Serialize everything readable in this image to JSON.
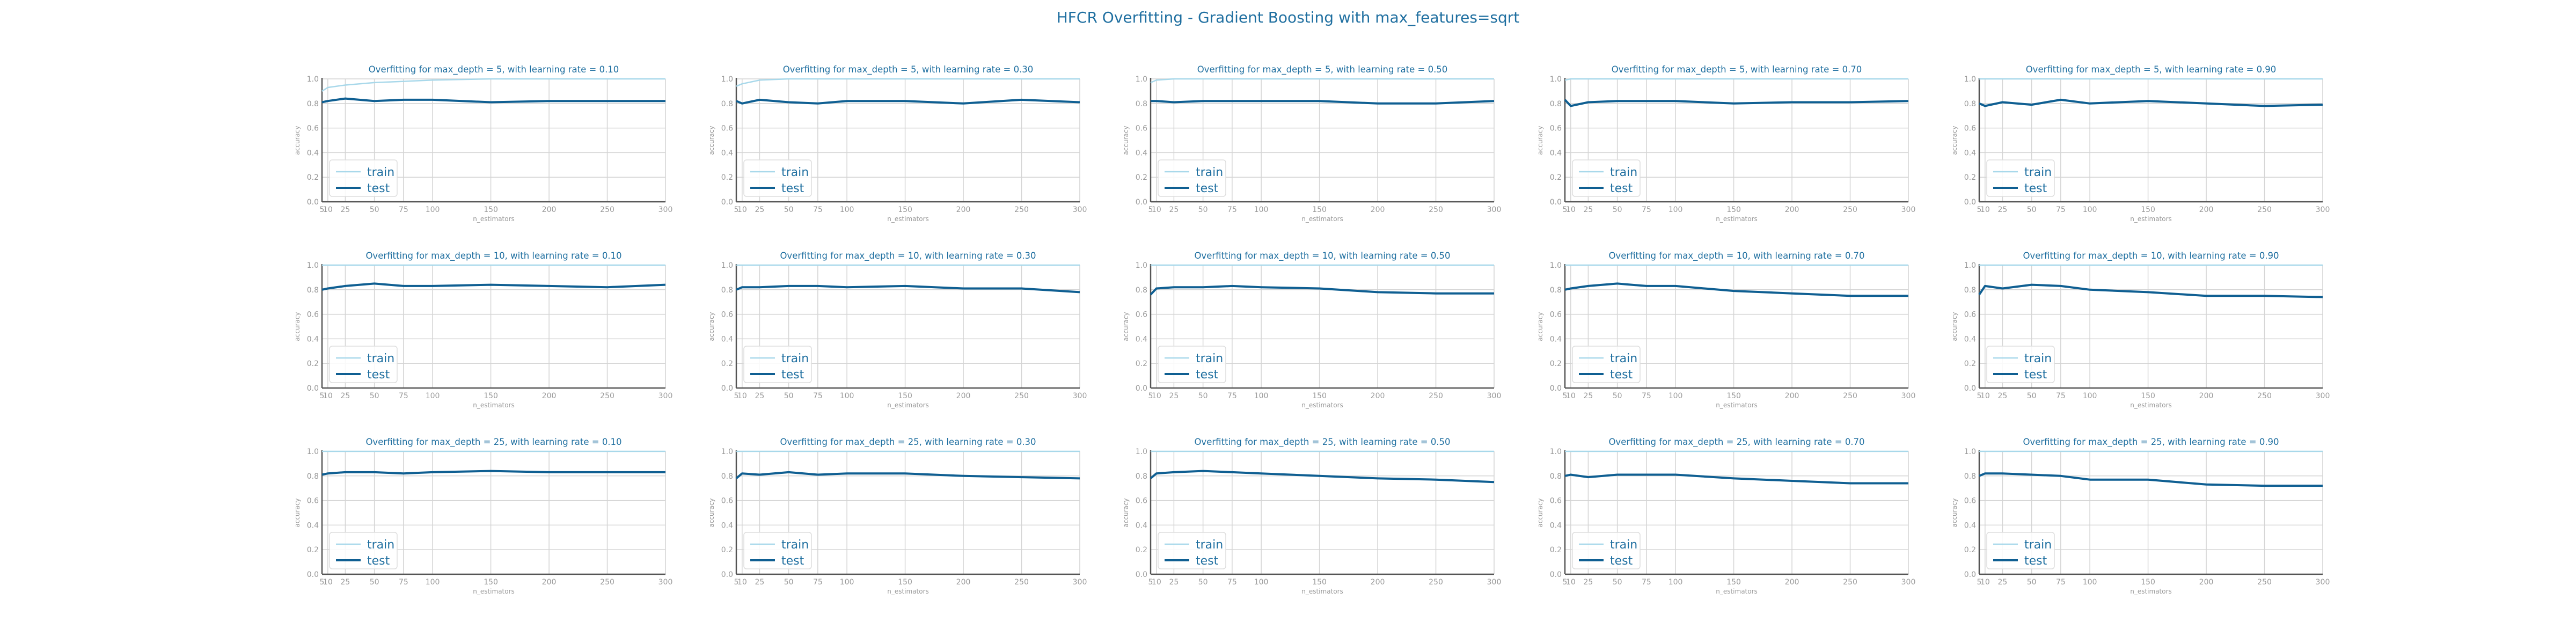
{
  "figure": {
    "title": "HFCR Overfitting - Gradient Boosting with max_features=sqrt"
  },
  "colors": {
    "title": "#1f6fa0",
    "train": "#a8d8ea",
    "test": "#0f5f92",
    "grid": "#d4d4d4",
    "axis": "#555555",
    "tick": "#999999"
  },
  "chart_data": [
    {
      "type": "line",
      "title": "Overfitting for max_depth = 5, with learning rate = 0.10",
      "xlabel": "n_estimators",
      "ylabel": "accuracy",
      "xlim": [
        5,
        300
      ],
      "ylim": [
        0,
        1
      ],
      "x": [
        5,
        10,
        25,
        50,
        75,
        100,
        150,
        200,
        250,
        300
      ],
      "legend": "lower-left",
      "grid": true,
      "series": [
        {
          "name": "train",
          "values": [
            0.9,
            0.93,
            0.95,
            0.97,
            0.98,
            0.99,
            1.0,
            1.0,
            1.0,
            1.0
          ]
        },
        {
          "name": "test",
          "values": [
            0.81,
            0.82,
            0.84,
            0.82,
            0.83,
            0.83,
            0.81,
            0.82,
            0.82,
            0.82
          ]
        }
      ]
    },
    {
      "type": "line",
      "title": "Overfitting for max_depth = 5, with learning rate = 0.30",
      "xlabel": "n_estimators",
      "ylabel": "accuracy",
      "xlim": [
        5,
        300
      ],
      "ylim": [
        0,
        1
      ],
      "x": [
        5,
        10,
        25,
        50,
        75,
        100,
        150,
        200,
        250,
        300
      ],
      "legend": "lower-left",
      "grid": true,
      "series": [
        {
          "name": "train",
          "values": [
            0.94,
            0.96,
            0.99,
            1.0,
            1.0,
            1.0,
            1.0,
            1.0,
            1.0,
            1.0
          ]
        },
        {
          "name": "test",
          "values": [
            0.82,
            0.8,
            0.83,
            0.81,
            0.8,
            0.82,
            0.82,
            0.8,
            0.83,
            0.81
          ]
        }
      ]
    },
    {
      "type": "line",
      "title": "Overfitting for max_depth = 5, with learning rate = 0.50",
      "xlabel": "n_estimators",
      "ylabel": "accuracy",
      "xlim": [
        5,
        300
      ],
      "ylim": [
        0,
        1
      ],
      "x": [
        5,
        10,
        25,
        50,
        75,
        100,
        150,
        200,
        250,
        300
      ],
      "legend": "lower-left",
      "grid": true,
      "series": [
        {
          "name": "train",
          "values": [
            0.97,
            0.99,
            1.0,
            1.0,
            1.0,
            1.0,
            1.0,
            1.0,
            1.0,
            1.0
          ]
        },
        {
          "name": "test",
          "values": [
            0.82,
            0.82,
            0.81,
            0.82,
            0.82,
            0.82,
            0.82,
            0.8,
            0.8,
            0.82
          ]
        }
      ]
    },
    {
      "type": "line",
      "title": "Overfitting for max_depth = 5, with learning rate = 0.70",
      "xlabel": "n_estimators",
      "ylabel": "accuracy",
      "xlim": [
        5,
        300
      ],
      "ylim": [
        0,
        1
      ],
      "x": [
        5,
        10,
        25,
        50,
        75,
        100,
        150,
        200,
        250,
        300
      ],
      "legend": "lower-left",
      "grid": true,
      "series": [
        {
          "name": "train",
          "values": [
            0.99,
            1.0,
            1.0,
            1.0,
            1.0,
            1.0,
            1.0,
            1.0,
            1.0,
            1.0
          ]
        },
        {
          "name": "test",
          "values": [
            0.83,
            0.78,
            0.81,
            0.82,
            0.82,
            0.82,
            0.8,
            0.81,
            0.81,
            0.82
          ]
        }
      ]
    },
    {
      "type": "line",
      "title": "Overfitting for max_depth = 5, with learning rate = 0.90",
      "xlabel": "n_estimators",
      "ylabel": "accuracy",
      "xlim": [
        5,
        300
      ],
      "ylim": [
        0,
        1
      ],
      "x": [
        5,
        10,
        25,
        50,
        75,
        100,
        150,
        200,
        250,
        300
      ],
      "legend": "lower-left",
      "grid": true,
      "series": [
        {
          "name": "train",
          "values": [
            1.0,
            1.0,
            1.0,
            1.0,
            1.0,
            1.0,
            1.0,
            1.0,
            1.0,
            1.0
          ]
        },
        {
          "name": "test",
          "values": [
            0.8,
            0.78,
            0.81,
            0.79,
            0.83,
            0.8,
            0.82,
            0.8,
            0.78,
            0.79
          ]
        }
      ]
    },
    {
      "type": "line",
      "title": "Overfitting for max_depth = 10, with learning rate = 0.10",
      "xlabel": "n_estimators",
      "ylabel": "accuracy",
      "xlim": [
        5,
        300
      ],
      "ylim": [
        0,
        1
      ],
      "x": [
        5,
        10,
        25,
        50,
        75,
        100,
        150,
        200,
        250,
        300
      ],
      "legend": "lower-left",
      "grid": true,
      "series": [
        {
          "name": "train",
          "values": [
            1.0,
            1.0,
            1.0,
            1.0,
            1.0,
            1.0,
            1.0,
            1.0,
            1.0,
            1.0
          ]
        },
        {
          "name": "test",
          "values": [
            0.8,
            0.81,
            0.83,
            0.85,
            0.83,
            0.83,
            0.84,
            0.83,
            0.82,
            0.84
          ]
        }
      ]
    },
    {
      "type": "line",
      "title": "Overfitting for max_depth = 10, with learning rate = 0.30",
      "xlabel": "n_estimators",
      "ylabel": "accuracy",
      "xlim": [
        5,
        300
      ],
      "ylim": [
        0,
        1
      ],
      "x": [
        5,
        10,
        25,
        50,
        75,
        100,
        150,
        200,
        250,
        300
      ],
      "legend": "lower-left",
      "grid": true,
      "series": [
        {
          "name": "train",
          "values": [
            1.0,
            1.0,
            1.0,
            1.0,
            1.0,
            1.0,
            1.0,
            1.0,
            1.0,
            1.0
          ]
        },
        {
          "name": "test",
          "values": [
            0.8,
            0.82,
            0.82,
            0.83,
            0.83,
            0.82,
            0.83,
            0.81,
            0.81,
            0.78
          ]
        }
      ]
    },
    {
      "type": "line",
      "title": "Overfitting for max_depth = 10, with learning rate = 0.50",
      "xlabel": "n_estimators",
      "ylabel": "accuracy",
      "xlim": [
        5,
        300
      ],
      "ylim": [
        0,
        1
      ],
      "x": [
        5,
        10,
        25,
        50,
        75,
        100,
        150,
        200,
        250,
        300
      ],
      "legend": "lower-left",
      "grid": true,
      "series": [
        {
          "name": "train",
          "values": [
            1.0,
            1.0,
            1.0,
            1.0,
            1.0,
            1.0,
            1.0,
            1.0,
            1.0,
            1.0
          ]
        },
        {
          "name": "test",
          "values": [
            0.76,
            0.81,
            0.82,
            0.82,
            0.83,
            0.82,
            0.81,
            0.78,
            0.77,
            0.77
          ]
        }
      ]
    },
    {
      "type": "line",
      "title": "Overfitting for max_depth = 10, with learning rate = 0.70",
      "xlabel": "n_estimators",
      "ylabel": "accuracy",
      "xlim": [
        5,
        300
      ],
      "ylim": [
        0,
        1
      ],
      "x": [
        5,
        10,
        25,
        50,
        75,
        100,
        150,
        200,
        250,
        300
      ],
      "legend": "lower-left",
      "grid": true,
      "series": [
        {
          "name": "train",
          "values": [
            1.0,
            1.0,
            1.0,
            1.0,
            1.0,
            1.0,
            1.0,
            1.0,
            1.0,
            1.0
          ]
        },
        {
          "name": "test",
          "values": [
            0.8,
            0.81,
            0.83,
            0.85,
            0.83,
            0.83,
            0.79,
            0.77,
            0.75,
            0.75
          ]
        }
      ]
    },
    {
      "type": "line",
      "title": "Overfitting for max_depth = 10, with learning rate = 0.90",
      "xlabel": "n_estimators",
      "ylabel": "accuracy",
      "xlim": [
        5,
        300
      ],
      "ylim": [
        0,
        1
      ],
      "x": [
        5,
        10,
        25,
        50,
        75,
        100,
        150,
        200,
        250,
        300
      ],
      "legend": "lower-left",
      "grid": true,
      "series": [
        {
          "name": "train",
          "values": [
            1.0,
            1.0,
            1.0,
            1.0,
            1.0,
            1.0,
            1.0,
            1.0,
            1.0,
            1.0
          ]
        },
        {
          "name": "test",
          "values": [
            0.76,
            0.83,
            0.81,
            0.84,
            0.83,
            0.8,
            0.78,
            0.75,
            0.75,
            0.74
          ]
        }
      ]
    },
    {
      "type": "line",
      "title": "Overfitting for max_depth = 25, with learning rate = 0.10",
      "xlabel": "n_estimators",
      "ylabel": "accuracy",
      "xlim": [
        5,
        300
      ],
      "ylim": [
        0,
        1
      ],
      "x": [
        5,
        10,
        25,
        50,
        75,
        100,
        150,
        200,
        250,
        300
      ],
      "legend": "lower-left",
      "grid": true,
      "series": [
        {
          "name": "train",
          "values": [
            1.0,
            1.0,
            1.0,
            1.0,
            1.0,
            1.0,
            1.0,
            1.0,
            1.0,
            1.0
          ]
        },
        {
          "name": "test",
          "values": [
            0.81,
            0.82,
            0.83,
            0.83,
            0.82,
            0.83,
            0.84,
            0.83,
            0.83,
            0.83
          ]
        }
      ]
    },
    {
      "type": "line",
      "title": "Overfitting for max_depth = 25, with learning rate = 0.30",
      "xlabel": "n_estimators",
      "ylabel": "accuracy",
      "xlim": [
        5,
        300
      ],
      "ylim": [
        0,
        1
      ],
      "x": [
        5,
        10,
        25,
        50,
        75,
        100,
        150,
        200,
        250,
        300
      ],
      "legend": "lower-left",
      "grid": true,
      "series": [
        {
          "name": "train",
          "values": [
            1.0,
            1.0,
            1.0,
            1.0,
            1.0,
            1.0,
            1.0,
            1.0,
            1.0,
            1.0
          ]
        },
        {
          "name": "test",
          "values": [
            0.78,
            0.82,
            0.81,
            0.83,
            0.81,
            0.82,
            0.82,
            0.8,
            0.79,
            0.78
          ]
        }
      ]
    },
    {
      "type": "line",
      "title": "Overfitting for max_depth = 25, with learning rate = 0.50",
      "xlabel": "n_estimators",
      "ylabel": "accuracy",
      "xlim": [
        5,
        300
      ],
      "ylim": [
        0,
        1
      ],
      "x": [
        5,
        10,
        25,
        50,
        75,
        100,
        150,
        200,
        250,
        300
      ],
      "legend": "lower-left",
      "grid": true,
      "series": [
        {
          "name": "train",
          "values": [
            1.0,
            1.0,
            1.0,
            1.0,
            1.0,
            1.0,
            1.0,
            1.0,
            1.0,
            1.0
          ]
        },
        {
          "name": "test",
          "values": [
            0.78,
            0.82,
            0.83,
            0.84,
            0.83,
            0.82,
            0.8,
            0.78,
            0.77,
            0.75
          ]
        }
      ]
    },
    {
      "type": "line",
      "title": "Overfitting for max_depth = 25, with learning rate = 0.70",
      "xlabel": "n_estimators",
      "ylabel": "accuracy",
      "xlim": [
        5,
        300
      ],
      "ylim": [
        0,
        1
      ],
      "x": [
        5,
        10,
        25,
        50,
        75,
        100,
        150,
        200,
        250,
        300
      ],
      "legend": "lower-left",
      "grid": true,
      "series": [
        {
          "name": "train",
          "values": [
            1.0,
            1.0,
            1.0,
            1.0,
            1.0,
            1.0,
            1.0,
            1.0,
            1.0,
            1.0
          ]
        },
        {
          "name": "test",
          "values": [
            0.8,
            0.81,
            0.79,
            0.81,
            0.81,
            0.81,
            0.78,
            0.76,
            0.74,
            0.74
          ]
        }
      ]
    },
    {
      "type": "line",
      "title": "Overfitting for max_depth = 25, with learning rate = 0.90",
      "xlabel": "n_estimators",
      "ylabel": "accuracy",
      "xlim": [
        5,
        300
      ],
      "ylim": [
        0,
        1
      ],
      "x": [
        5,
        10,
        25,
        50,
        75,
        100,
        150,
        200,
        250,
        300
      ],
      "legend": "lower-left",
      "grid": true,
      "series": [
        {
          "name": "train",
          "values": [
            1.0,
            1.0,
            1.0,
            1.0,
            1.0,
            1.0,
            1.0,
            1.0,
            1.0,
            1.0
          ]
        },
        {
          "name": "test",
          "values": [
            0.8,
            0.82,
            0.82,
            0.81,
            0.8,
            0.77,
            0.77,
            0.73,
            0.72,
            0.72
          ]
        }
      ]
    }
  ]
}
